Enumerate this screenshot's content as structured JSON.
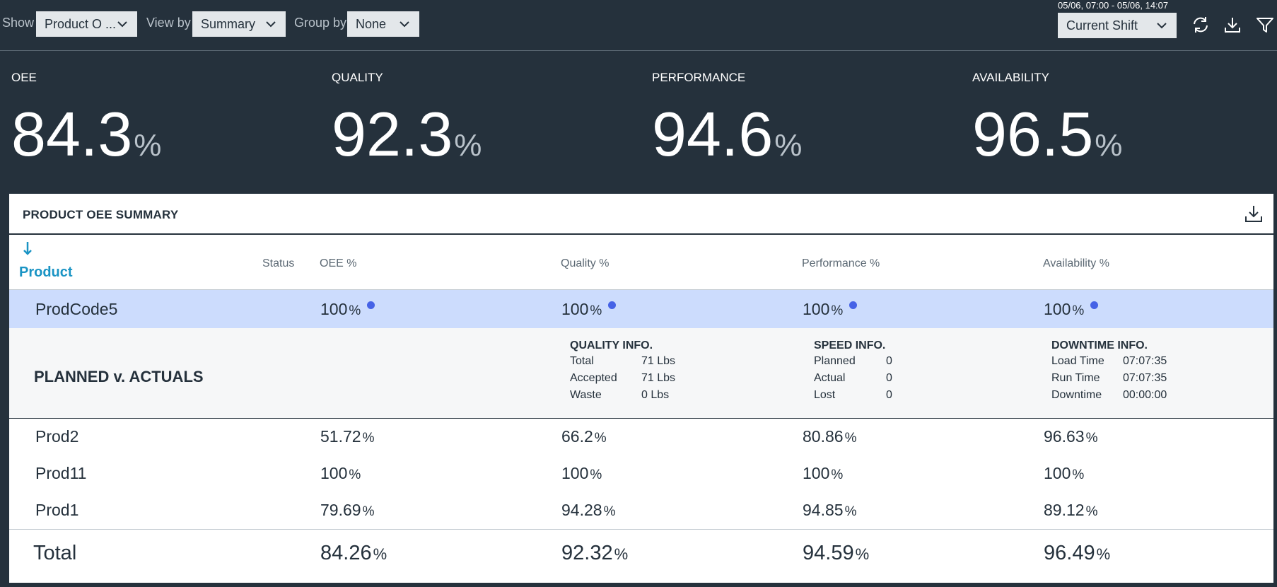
{
  "toolbar": {
    "show_label": "Show",
    "show_value": "Product O ...",
    "viewby_label": "View by",
    "viewby_value": "Summary",
    "groupby_label": "Group by",
    "groupby_value": "None",
    "date_range": "05/06, 07:00 - 05/06, 14:07",
    "shift_value": "Current Shift",
    "icons": [
      "refresh-icon",
      "download-icon",
      "filter-icon"
    ]
  },
  "kpis": [
    {
      "label": "OEE",
      "value": "84.3",
      "unit": "%"
    },
    {
      "label": "QUALITY",
      "value": "92.3",
      "unit": "%"
    },
    {
      "label": "PERFORMANCE",
      "value": "94.6",
      "unit": "%"
    },
    {
      "label": "AVAILABILITY",
      "value": "96.5",
      "unit": "%"
    }
  ],
  "panel": {
    "title": "PRODUCT OEE SUMMARY",
    "columns": {
      "product": "Product",
      "status": "Status",
      "oee": "OEE %",
      "quality": "Quality %",
      "performance": "Performance %",
      "availability": "Availability %"
    },
    "unit": "%",
    "rows": [
      {
        "product": "ProdCode5",
        "oee": "100",
        "quality": "100",
        "performance": "100",
        "availability": "100"
      },
      {
        "product": "Prod2",
        "oee": "51.72",
        "quality": "66.2",
        "performance": "80.86",
        "availability": "96.63"
      },
      {
        "product": "Prod11",
        "oee": "100",
        "quality": "100",
        "performance": "100",
        "availability": "100"
      },
      {
        "product": "Prod1",
        "oee": "79.69",
        "quality": "94.28",
        "performance": "94.85",
        "availability": "89.12"
      }
    ],
    "detail": {
      "title": "PLANNED v. ACTUALS",
      "quality": {
        "title": "QUALITY INFO.",
        "items": [
          {
            "label": "Total",
            "value": "71 Lbs"
          },
          {
            "label": "Accepted",
            "value": "71 Lbs"
          },
          {
            "label": "Waste",
            "value": "0 Lbs"
          }
        ]
      },
      "speed": {
        "title": "SPEED INFO.",
        "items": [
          {
            "label": "Planned",
            "value": "0"
          },
          {
            "label": "Actual",
            "value": "0"
          },
          {
            "label": "Lost",
            "value": "0"
          }
        ]
      },
      "downtime": {
        "title": "DOWNTIME INFO.",
        "items": [
          {
            "label": "Load Time",
            "value": "07:07:35"
          },
          {
            "label": "Run Time",
            "value": "07:07:35"
          },
          {
            "label": "Downtime",
            "value": "00:00:00"
          }
        ]
      }
    },
    "total": {
      "label": "Total",
      "oee": "84.26",
      "quality": "92.32",
      "performance": "94.59",
      "availability": "96.49"
    }
  },
  "colors": {
    "background": "#25313c",
    "selected_row": "#ccdcfd",
    "accent": "#1a94c4",
    "status_dot": "#4562e6"
  }
}
